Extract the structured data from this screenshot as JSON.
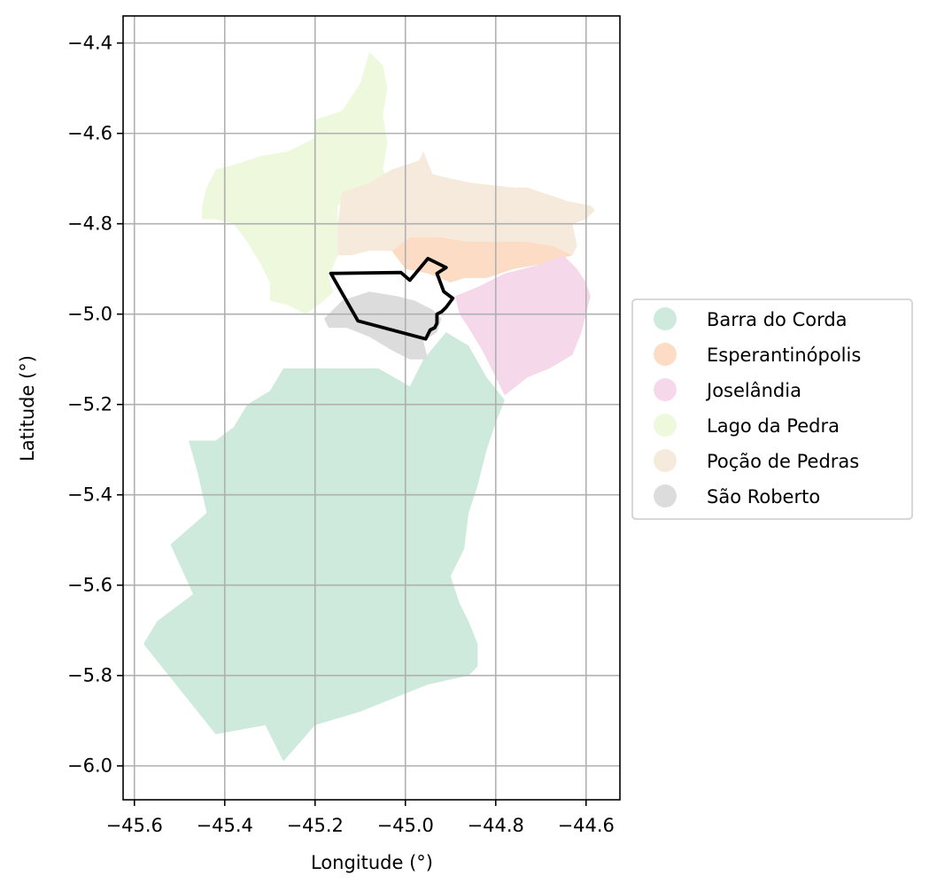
{
  "chart_data": {
    "type": "map",
    "xlabel": "Longitude (°)",
    "ylabel": "Latitude (°)",
    "xlim": [
      -45.625,
      -44.525
    ],
    "ylim": [
      -6.075,
      -4.34
    ],
    "x_ticks": [
      {
        "value": -45.6,
        "label": "−45.6"
      },
      {
        "value": -45.4,
        "label": "−45.4"
      },
      {
        "value": -45.2,
        "label": "−45.2"
      },
      {
        "value": -45.0,
        "label": "−45.0"
      },
      {
        "value": -44.8,
        "label": "−44.8"
      },
      {
        "value": -44.6,
        "label": "−44.6"
      }
    ],
    "y_ticks": [
      {
        "value": -4.4,
        "label": "−4.4"
      },
      {
        "value": -4.6,
        "label": "−4.6"
      },
      {
        "value": -4.8,
        "label": "−4.8"
      },
      {
        "value": -5.0,
        "label": "−5.0"
      },
      {
        "value": -5.2,
        "label": "−5.2"
      },
      {
        "value": -5.4,
        "label": "−5.4"
      },
      {
        "value": -5.6,
        "label": "−5.6"
      },
      {
        "value": -5.8,
        "label": "−5.8"
      },
      {
        "value": -6.0,
        "label": "−6.0"
      }
    ],
    "grid": true,
    "legend_position": "center-right",
    "regions": [
      {
        "name": "Barra do Corda",
        "color": "#cdeadc",
        "polygon": [
          [
            -45.16,
            -5.12
          ],
          [
            -45.06,
            -5.12
          ],
          [
            -44.99,
            -5.16
          ],
          [
            -44.96,
            -5.1
          ],
          [
            -44.91,
            -5.04
          ],
          [
            -44.86,
            -5.07
          ],
          [
            -44.82,
            -5.14
          ],
          [
            -44.78,
            -5.19
          ],
          [
            -44.8,
            -5.24
          ],
          [
            -44.82,
            -5.3
          ],
          [
            -44.84,
            -5.38
          ],
          [
            -44.86,
            -5.44
          ],
          [
            -44.87,
            -5.52
          ],
          [
            -44.9,
            -5.58
          ],
          [
            -44.88,
            -5.64
          ],
          [
            -44.86,
            -5.68
          ],
          [
            -44.84,
            -5.73
          ],
          [
            -44.84,
            -5.78
          ],
          [
            -44.86,
            -5.8
          ],
          [
            -44.95,
            -5.82
          ],
          [
            -45.05,
            -5.86
          ],
          [
            -45.1,
            -5.88
          ],
          [
            -45.2,
            -5.91
          ],
          [
            -45.27,
            -5.99
          ],
          [
            -45.31,
            -5.91
          ],
          [
            -45.42,
            -5.93
          ],
          [
            -45.58,
            -5.73
          ],
          [
            -45.55,
            -5.68
          ],
          [
            -45.47,
            -5.62
          ],
          [
            -45.52,
            -5.51
          ],
          [
            -45.44,
            -5.44
          ],
          [
            -45.46,
            -5.35
          ],
          [
            -45.48,
            -5.28
          ],
          [
            -45.42,
            -5.28
          ],
          [
            -45.38,
            -5.25
          ],
          [
            -45.35,
            -5.2
          ],
          [
            -45.3,
            -5.17
          ],
          [
            -45.27,
            -5.12
          ]
        ]
      },
      {
        "name": "Esperantinópolis",
        "color": "#fcdcc4",
        "polygon": [
          [
            -45.0,
            -4.9
          ],
          [
            -45.03,
            -4.86
          ],
          [
            -44.99,
            -4.83
          ],
          [
            -44.92,
            -4.83
          ],
          [
            -44.86,
            -4.84
          ],
          [
            -44.8,
            -4.84
          ],
          [
            -44.73,
            -4.84
          ],
          [
            -44.67,
            -4.85
          ],
          [
            -44.63,
            -4.87
          ],
          [
            -44.7,
            -4.89
          ],
          [
            -44.76,
            -4.9
          ],
          [
            -44.82,
            -4.92
          ],
          [
            -44.87,
            -4.92
          ],
          [
            -44.9,
            -4.93
          ],
          [
            -44.95,
            -4.91
          ]
        ]
      },
      {
        "name": "Joselândia",
        "color": "#f5d9eb",
        "polygon": [
          [
            -44.89,
            -4.96
          ],
          [
            -44.84,
            -4.94
          ],
          [
            -44.78,
            -4.91
          ],
          [
            -44.7,
            -4.89
          ],
          [
            -44.65,
            -4.87
          ],
          [
            -44.62,
            -4.9
          ],
          [
            -44.6,
            -4.93
          ],
          [
            -44.59,
            -4.96
          ],
          [
            -44.6,
            -5.0
          ],
          [
            -44.61,
            -5.04
          ],
          [
            -44.63,
            -5.09
          ],
          [
            -44.68,
            -5.12
          ],
          [
            -44.73,
            -5.14
          ],
          [
            -44.78,
            -5.18
          ],
          [
            -44.8,
            -5.14
          ],
          [
            -44.83,
            -5.08
          ],
          [
            -44.86,
            -5.03
          ],
          [
            -44.88,
            -5.0
          ]
        ]
      },
      {
        "name": "Lago da Pedra",
        "color": "#edf8dc",
        "polygon": [
          [
            -45.14,
            -4.55
          ],
          [
            -45.1,
            -4.49
          ],
          [
            -45.08,
            -4.42
          ],
          [
            -45.05,
            -4.45
          ],
          [
            -45.04,
            -4.5
          ],
          [
            -45.05,
            -4.56
          ],
          [
            -45.04,
            -4.62
          ],
          [
            -45.05,
            -4.68
          ],
          [
            -45.04,
            -4.7
          ],
          [
            -45.1,
            -4.72
          ],
          [
            -45.15,
            -4.76
          ],
          [
            -45.15,
            -4.87
          ],
          [
            -45.17,
            -4.92
          ],
          [
            -45.16,
            -4.95
          ],
          [
            -45.18,
            -4.97
          ],
          [
            -45.22,
            -5.0
          ],
          [
            -45.26,
            -4.98
          ],
          [
            -45.3,
            -4.97
          ],
          [
            -45.3,
            -4.93
          ],
          [
            -45.32,
            -4.89
          ],
          [
            -45.35,
            -4.84
          ],
          [
            -45.38,
            -4.8
          ],
          [
            -45.42,
            -4.79
          ],
          [
            -45.45,
            -4.79
          ],
          [
            -45.45,
            -4.76
          ],
          [
            -45.44,
            -4.72
          ],
          [
            -45.42,
            -4.68
          ],
          [
            -45.38,
            -4.67
          ],
          [
            -45.32,
            -4.65
          ],
          [
            -45.26,
            -4.64
          ],
          [
            -45.2,
            -4.61
          ],
          [
            -45.2,
            -4.57
          ]
        ]
      },
      {
        "name": "Poção de Pedras",
        "color": "#f5eadc",
        "polygon": [
          [
            -45.14,
            -4.73
          ],
          [
            -45.08,
            -4.71
          ],
          [
            -45.03,
            -4.68
          ],
          [
            -44.97,
            -4.66
          ],
          [
            -44.96,
            -4.64
          ],
          [
            -44.94,
            -4.69
          ],
          [
            -44.9,
            -4.7
          ],
          [
            -44.85,
            -4.71
          ],
          [
            -44.76,
            -4.72
          ],
          [
            -44.73,
            -4.72
          ],
          [
            -44.7,
            -4.73
          ],
          [
            -44.64,
            -4.75
          ],
          [
            -44.59,
            -4.76
          ],
          [
            -44.58,
            -4.77
          ],
          [
            -44.6,
            -4.79
          ],
          [
            -44.63,
            -4.8
          ],
          [
            -44.62,
            -4.85
          ],
          [
            -44.63,
            -4.87
          ],
          [
            -44.67,
            -4.85
          ],
          [
            -44.73,
            -4.84
          ],
          [
            -44.8,
            -4.84
          ],
          [
            -44.86,
            -4.84
          ],
          [
            -44.92,
            -4.83
          ],
          [
            -44.99,
            -4.83
          ],
          [
            -45.03,
            -4.86
          ],
          [
            -45.08,
            -4.86
          ],
          [
            -45.12,
            -4.87
          ],
          [
            -45.15,
            -4.87
          ],
          [
            -45.15,
            -4.8
          ]
        ]
      },
      {
        "name": "São Roberto",
        "color": "#dcdcdc",
        "polygon": [
          [
            -45.08,
            -4.95
          ],
          [
            -45.14,
            -4.97
          ],
          [
            -45.16,
            -4.99
          ],
          [
            -45.18,
            -5.01
          ],
          [
            -45.17,
            -5.03
          ],
          [
            -45.13,
            -5.03
          ],
          [
            -45.08,
            -5.05
          ],
          [
            -45.03,
            -5.08
          ],
          [
            -44.99,
            -5.1
          ],
          [
            -44.95,
            -5.1
          ],
          [
            -44.96,
            -5.06
          ],
          [
            -44.93,
            -5.04
          ],
          [
            -44.92,
            -5.01
          ],
          [
            -44.94,
            -4.99
          ],
          [
            -44.98,
            -4.97
          ],
          [
            -45.02,
            -4.96
          ]
        ]
      }
    ],
    "outline": {
      "color": "#000000",
      "polygon": [
        [
          -45.165,
          -4.91
        ],
        [
          -45.01,
          -4.908
        ],
        [
          -44.99,
          -4.925
        ],
        [
          -44.95,
          -4.877
        ],
        [
          -44.91,
          -4.897
        ],
        [
          -44.93,
          -4.91
        ],
        [
          -44.915,
          -4.95
        ],
        [
          -44.895,
          -4.965
        ],
        [
          -44.91,
          -4.985
        ],
        [
          -44.92,
          -4.995
        ],
        [
          -44.93,
          -5.0
        ],
        [
          -44.93,
          -5.02
        ],
        [
          -44.935,
          -5.03
        ],
        [
          -44.945,
          -5.035
        ],
        [
          -44.95,
          -5.045
        ],
        [
          -44.955,
          -5.055
        ],
        [
          -45.105,
          -5.015
        ]
      ]
    },
    "legend": [
      {
        "label": "Barra do Corda",
        "color": "#cdeadc"
      },
      {
        "label": "Esperantinópolis",
        "color": "#fcdcc4"
      },
      {
        "label": "Joselândia",
        "color": "#f5d9eb"
      },
      {
        "label": "Lago da Pedra",
        "color": "#edf8dc"
      },
      {
        "label": "Poção de Pedras",
        "color": "#f5eadc"
      },
      {
        "label": "São Roberto",
        "color": "#dcdcdc"
      }
    ]
  }
}
